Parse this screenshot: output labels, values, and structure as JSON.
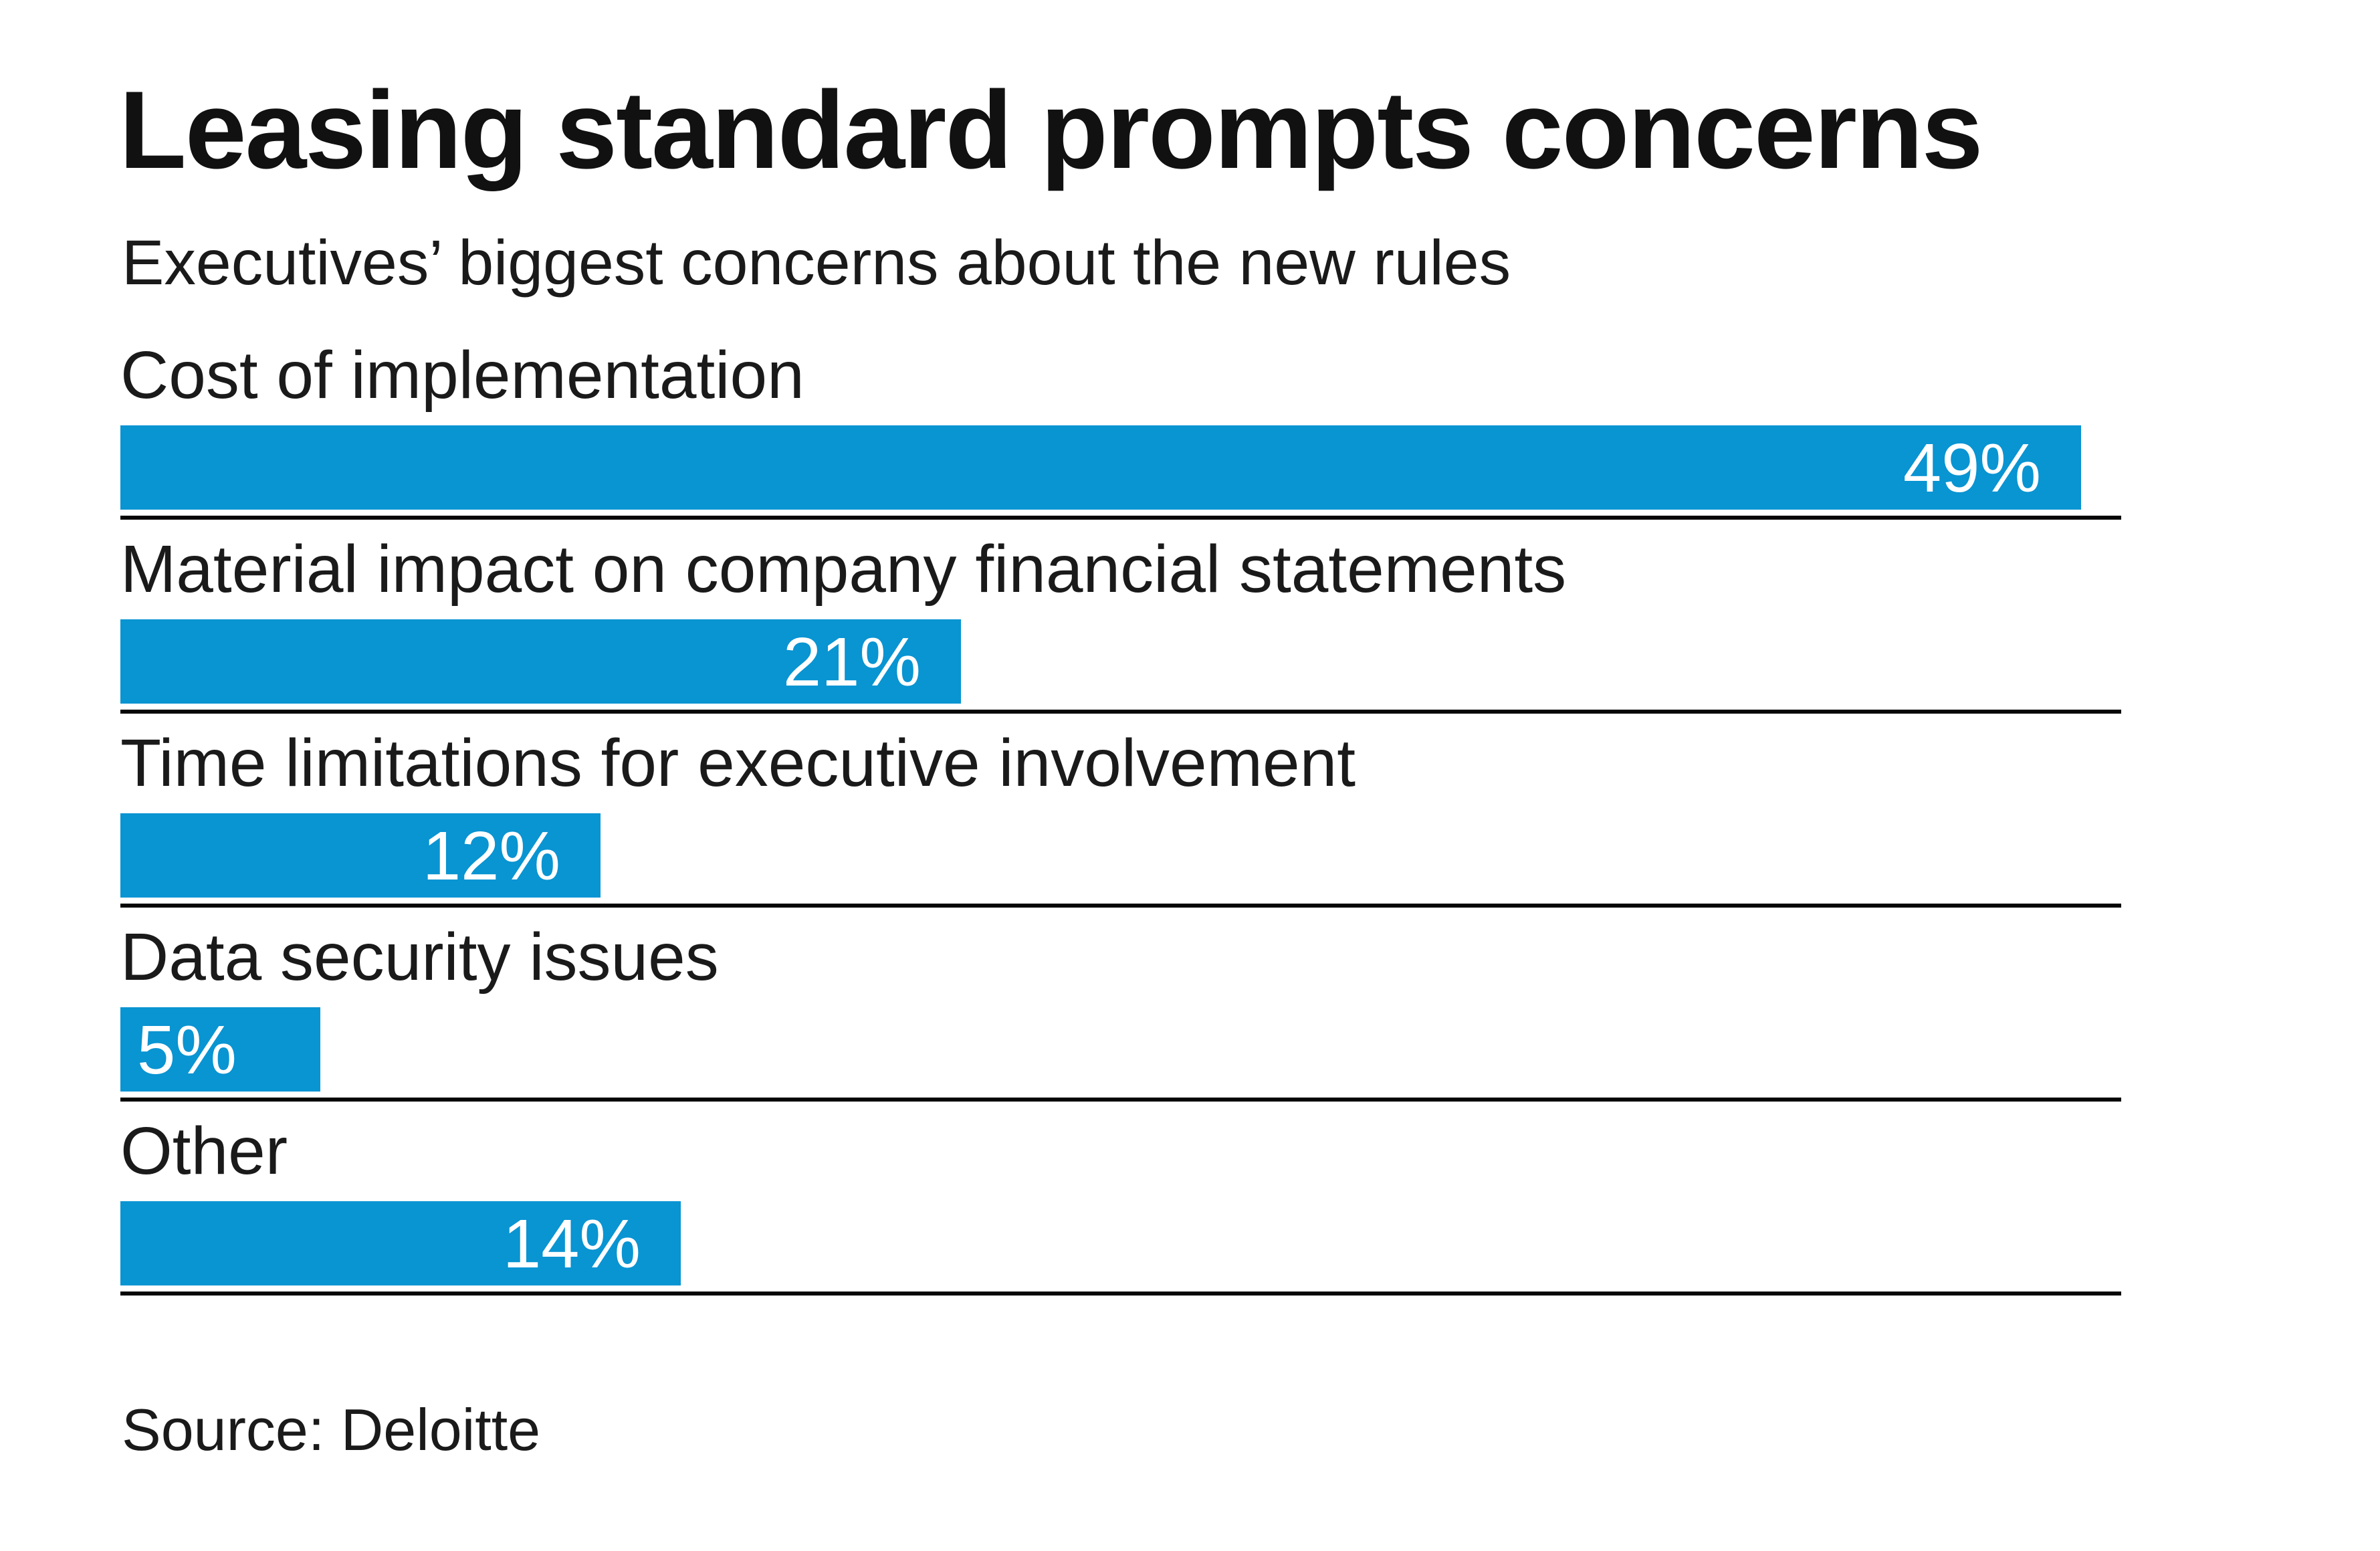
{
  "header": {
    "title": "Leasing standard prompts concerns",
    "subtitle": "Executives’ biggest concerns about the new rules"
  },
  "footer": {
    "source": "Source: Deloitte"
  },
  "colors": {
    "bar": "#0994d2",
    "separator": "#060606",
    "heading_text": "#111111",
    "body_text": "#1a1a1a",
    "value_text": "#ffffff",
    "background": "#ffffff"
  },
  "chart_data": {
    "type": "bar",
    "orientation": "horizontal",
    "title": "Leasing standard prompts concerns",
    "subtitle": "Executives’ biggest concerns about the new rules",
    "source": "Source: Deloitte",
    "categories": [
      "Cost of implementation",
      "Material impact on company financial statements",
      "Time limitations for executive involvement",
      "Data security issues",
      "Other"
    ],
    "values": [
      49,
      21,
      12,
      5,
      14
    ],
    "value_labels": [
      "49%",
      "21%",
      "12%",
      "5%",
      "14%"
    ],
    "xlabel": "",
    "ylabel": "",
    "axis_max": 50,
    "grid": false,
    "legend": false,
    "value_label_position": "inside-end"
  }
}
